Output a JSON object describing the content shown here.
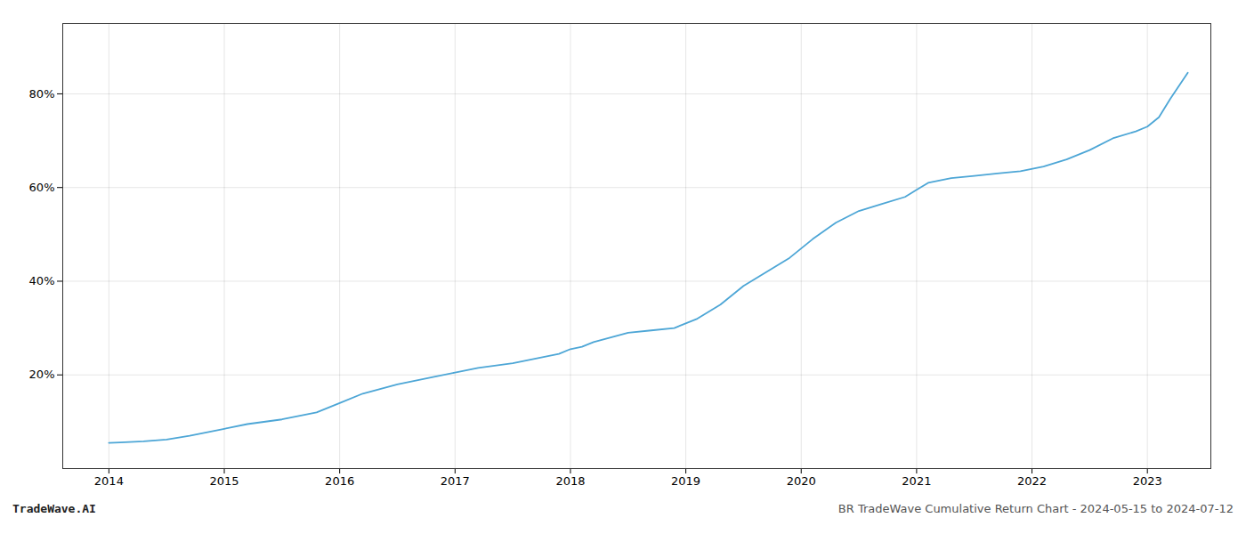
{
  "chart_data": {
    "type": "line",
    "x": [
      2014.0,
      2014.1,
      2014.3,
      2014.5,
      2014.7,
      2015.0,
      2015.2,
      2015.5,
      2015.8,
      2016.0,
      2016.2,
      2016.5,
      2016.8,
      2017.0,
      2017.2,
      2017.5,
      2017.7,
      2017.9,
      2018.0,
      2018.1,
      2018.2,
      2018.35,
      2018.5,
      2018.7,
      2018.9,
      2019.1,
      2019.3,
      2019.5,
      2019.7,
      2019.9,
      2020.1,
      2020.3,
      2020.5,
      2020.7,
      2020.9,
      2021.0,
      2021.1,
      2021.3,
      2021.5,
      2021.7,
      2021.9,
      2022.1,
      2022.3,
      2022.5,
      2022.7,
      2022.9,
      2023.0,
      2023.1,
      2023.2,
      2023.35
    ],
    "values": [
      5.5,
      5.6,
      5.8,
      6.2,
      7.0,
      8.5,
      9.5,
      10.5,
      12.0,
      14.0,
      16.0,
      18.0,
      19.5,
      20.5,
      21.5,
      22.5,
      23.5,
      24.5,
      25.5,
      26.0,
      27.0,
      28.0,
      29.0,
      29.5,
      30.0,
      32.0,
      35.0,
      39.0,
      42.0,
      45.0,
      49.0,
      52.5,
      55.0,
      56.5,
      58.0,
      59.5,
      61.0,
      62.0,
      62.5,
      63.0,
      63.5,
      64.5,
      66.0,
      68.0,
      70.5,
      72.0,
      73.0,
      75.0,
      79.0,
      84.5
    ],
    "color": "#4DA6D6",
    "xlim": [
      2013.6,
      2023.55
    ],
    "ylim": [
      0,
      95
    ],
    "xticks": [
      2014,
      2015,
      2016,
      2017,
      2018,
      2019,
      2020,
      2021,
      2022,
      2023
    ],
    "yticks": [
      {
        "value": 20,
        "label": "20%"
      },
      {
        "value": 40,
        "label": "40%"
      },
      {
        "value": 60,
        "label": "60%"
      },
      {
        "value": 80,
        "label": "80%"
      }
    ],
    "grid": true,
    "annotations": [
      "TradeWave.AI",
      "BR TradeWave Cumulative Return Chart - 2024-05-15 to 2024-07-12"
    ]
  }
}
